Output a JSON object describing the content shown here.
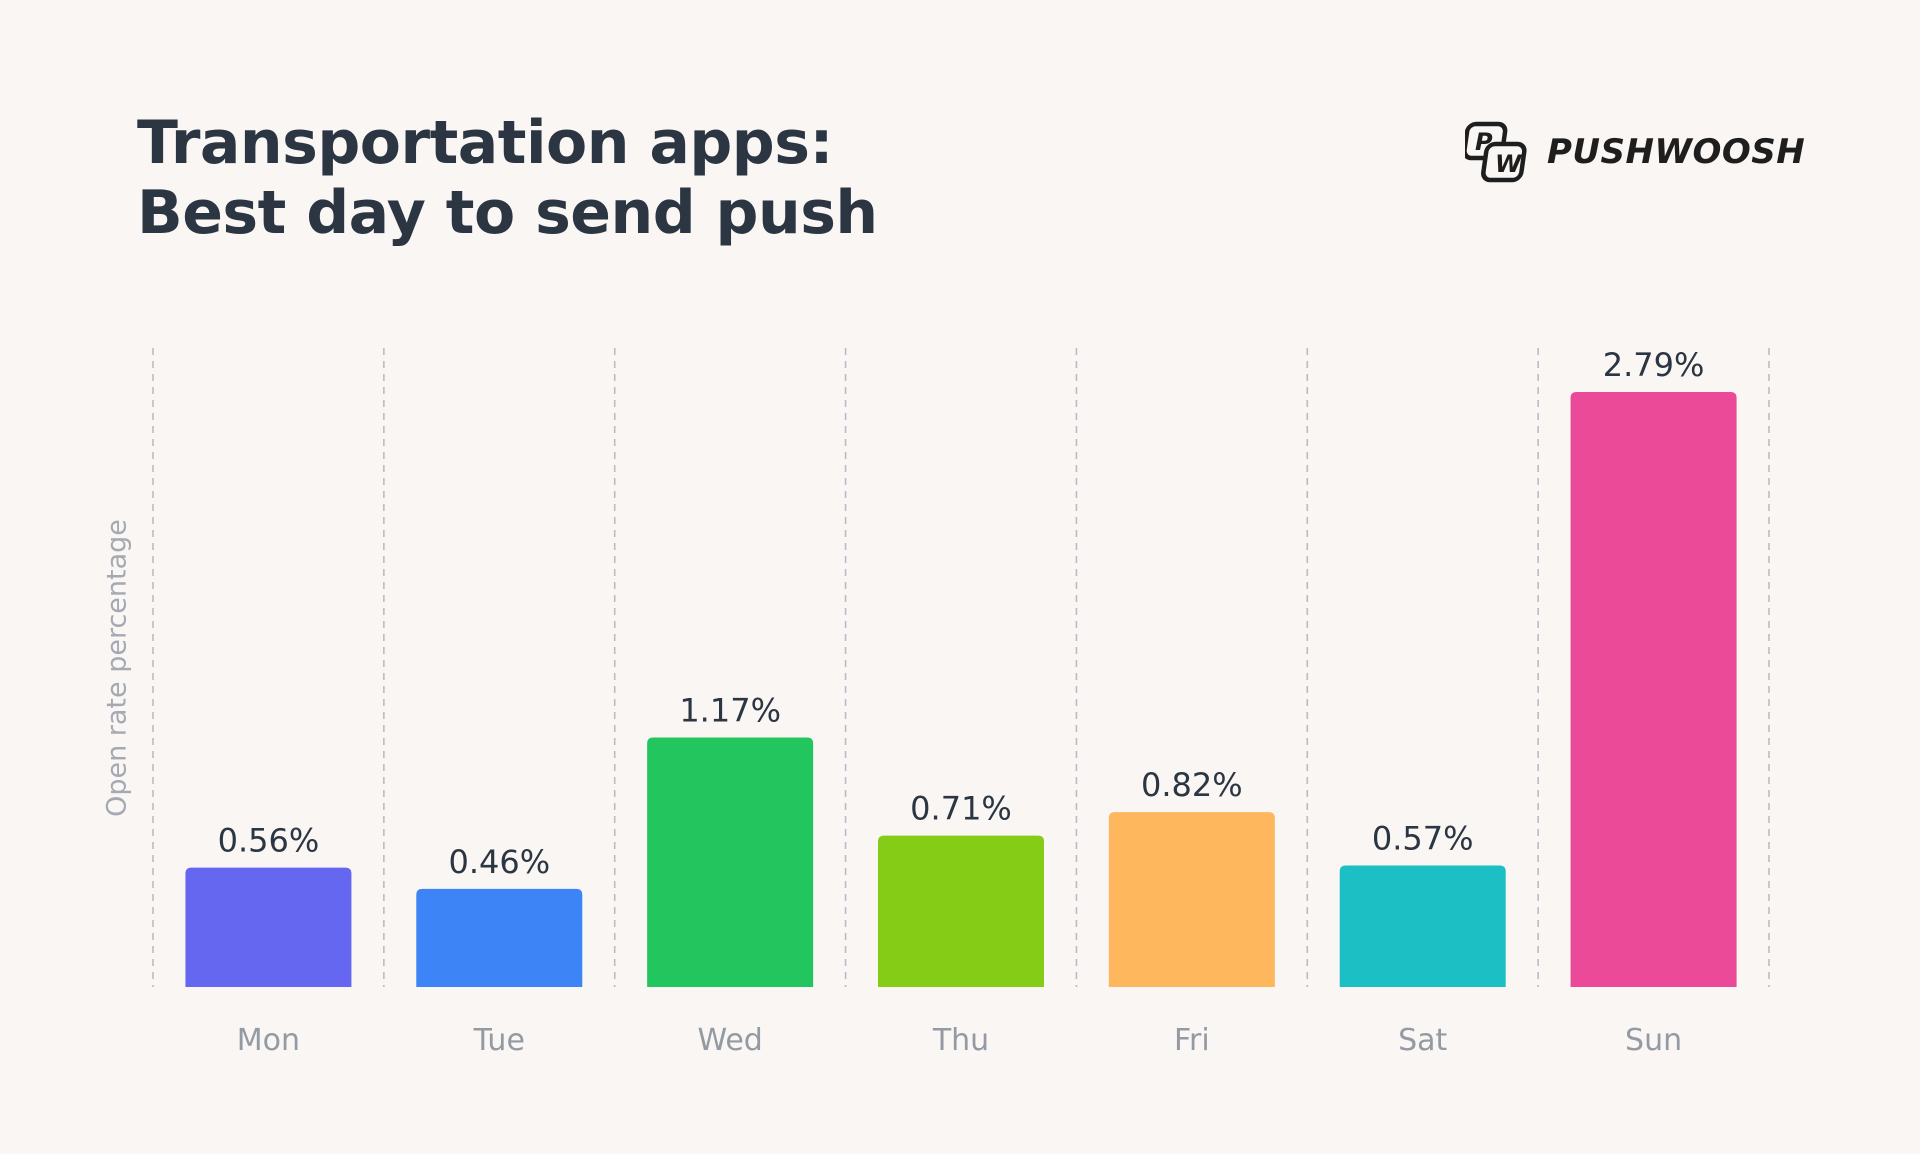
{
  "title_lines": [
    "Transportation apps:",
    "Best day to send push"
  ],
  "brand": {
    "name": "PUSHWOOSH",
    "logo_icon": "pushwoosh-pw-logo-icon"
  },
  "chart_data": {
    "type": "bar",
    "title": "Transportation apps: Best day to send push",
    "xlabel": "",
    "ylabel": "Open rate percentage",
    "categories": [
      "Mon",
      "Tue",
      "Wed",
      "Thu",
      "Fri",
      "Sat",
      "Sun"
    ],
    "values": [
      0.56,
      0.46,
      1.17,
      0.71,
      0.82,
      0.57,
      2.79
    ],
    "value_labels": [
      "0.56%",
      "0.46%",
      "1.17%",
      "0.71%",
      "0.82%",
      "0.57%",
      "2.79%"
    ],
    "colors": [
      "#6567f0",
      "#3d84f6",
      "#22c55e",
      "#84cc16",
      "#ffb75e",
      "#1cbfc4",
      "#ea4a98"
    ],
    "ylim": [
      0,
      3
    ],
    "grid": "vertical dashed separators",
    "legend": "none"
  }
}
